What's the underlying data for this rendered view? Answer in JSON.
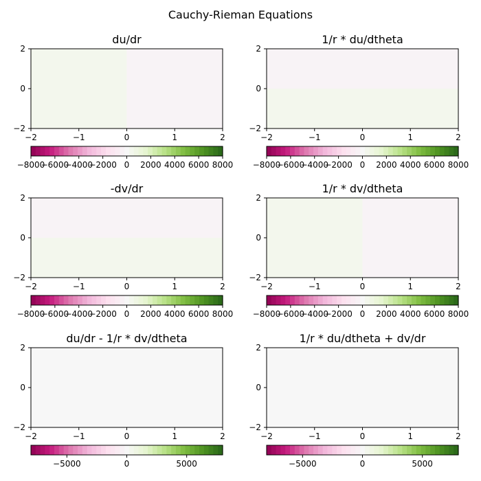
{
  "figure": {
    "suptitle": "Cauchy-Rieman Equations"
  },
  "chart_data": [
    {
      "type": "heatmap",
      "title": "du/dr",
      "xlim": [
        -2,
        2
      ],
      "ylim": [
        -2,
        2
      ],
      "xticks": [
        "−2",
        "−1",
        "0",
        "1",
        "2"
      ],
      "yticks": [
        "2",
        "0",
        "−2"
      ],
      "region_values": {
        "left_half": 400,
        "right_half": -250
      },
      "colorbar": {
        "colormap": "PiYG",
        "range": [
          -8000,
          8000
        ],
        "ticks": [
          "−8000",
          "−6000",
          "−4000",
          "−2000",
          "0",
          "2000",
          "4000",
          "6000",
          "8000"
        ]
      }
    },
    {
      "type": "heatmap",
      "title": "1/r * du/dtheta",
      "xlim": [
        -2,
        2
      ],
      "ylim": [
        -2,
        2
      ],
      "xticks": [
        "−2",
        "−1",
        "0",
        "1",
        "2"
      ],
      "yticks": [
        "2",
        "0",
        "−2"
      ],
      "region_values": {
        "upper_half": -250,
        "lower_half": 400
      },
      "colorbar": {
        "colormap": "PiYG",
        "range": [
          -8000,
          8000
        ],
        "ticks": [
          "−8000",
          "−6000",
          "−4000",
          "−2000",
          "0",
          "2000",
          "4000",
          "6000",
          "8000"
        ]
      }
    },
    {
      "type": "heatmap",
      "title": "-dv/dr",
      "xlim": [
        -2,
        2
      ],
      "ylim": [
        -2,
        2
      ],
      "xticks": [
        "−2",
        "−1",
        "0",
        "1",
        "2"
      ],
      "yticks": [
        "2",
        "0",
        "−2"
      ],
      "region_values": {
        "upper_half": -250,
        "lower_half": 400
      },
      "colorbar": {
        "colormap": "PiYG",
        "range": [
          -8000,
          8000
        ],
        "ticks": [
          "−8000",
          "−6000",
          "−4000",
          "−2000",
          "0",
          "2000",
          "4000",
          "6000",
          "8000"
        ]
      }
    },
    {
      "type": "heatmap",
      "title": "1/r * dv/dtheta",
      "xlim": [
        -2,
        2
      ],
      "ylim": [
        -2,
        2
      ],
      "xticks": [
        "−2",
        "−1",
        "0",
        "1",
        "2"
      ],
      "yticks": [
        "2",
        "0",
        "−2"
      ],
      "region_values": {
        "left_half": 400,
        "right_half": -250
      },
      "colorbar": {
        "colormap": "PiYG",
        "range": [
          -8000,
          8000
        ],
        "ticks": [
          "−8000",
          "−6000",
          "−4000",
          "−2000",
          "0",
          "2000",
          "4000",
          "6000",
          "8000"
        ]
      }
    },
    {
      "type": "heatmap",
      "title": "du/dr - 1/r * dv/dtheta",
      "xlim": [
        -2,
        2
      ],
      "ylim": [
        -2,
        2
      ],
      "xticks": [
        "−2",
        "−1",
        "0",
        "1",
        "2"
      ],
      "yticks": [
        "2",
        "0",
        "−2"
      ],
      "region_values": {
        "all": 0
      },
      "colorbar": {
        "colormap": "PiYG",
        "range": [
          -8000,
          8000
        ],
        "ticks": [
          "−5000",
          "0",
          "5000"
        ]
      }
    },
    {
      "type": "heatmap",
      "title": "1/r * du/dtheta + dv/dr",
      "xlim": [
        -2,
        2
      ],
      "ylim": [
        -2,
        2
      ],
      "xticks": [
        "−2",
        "−1",
        "0",
        "1",
        "2"
      ],
      "yticks": [
        "2",
        "0",
        "−2"
      ],
      "region_values": {
        "all": 0
      },
      "colorbar": {
        "colormap": "PiYG",
        "range": [
          -8000,
          8000
        ],
        "ticks": [
          "−5000",
          "0",
          "5000"
        ]
      }
    }
  ]
}
